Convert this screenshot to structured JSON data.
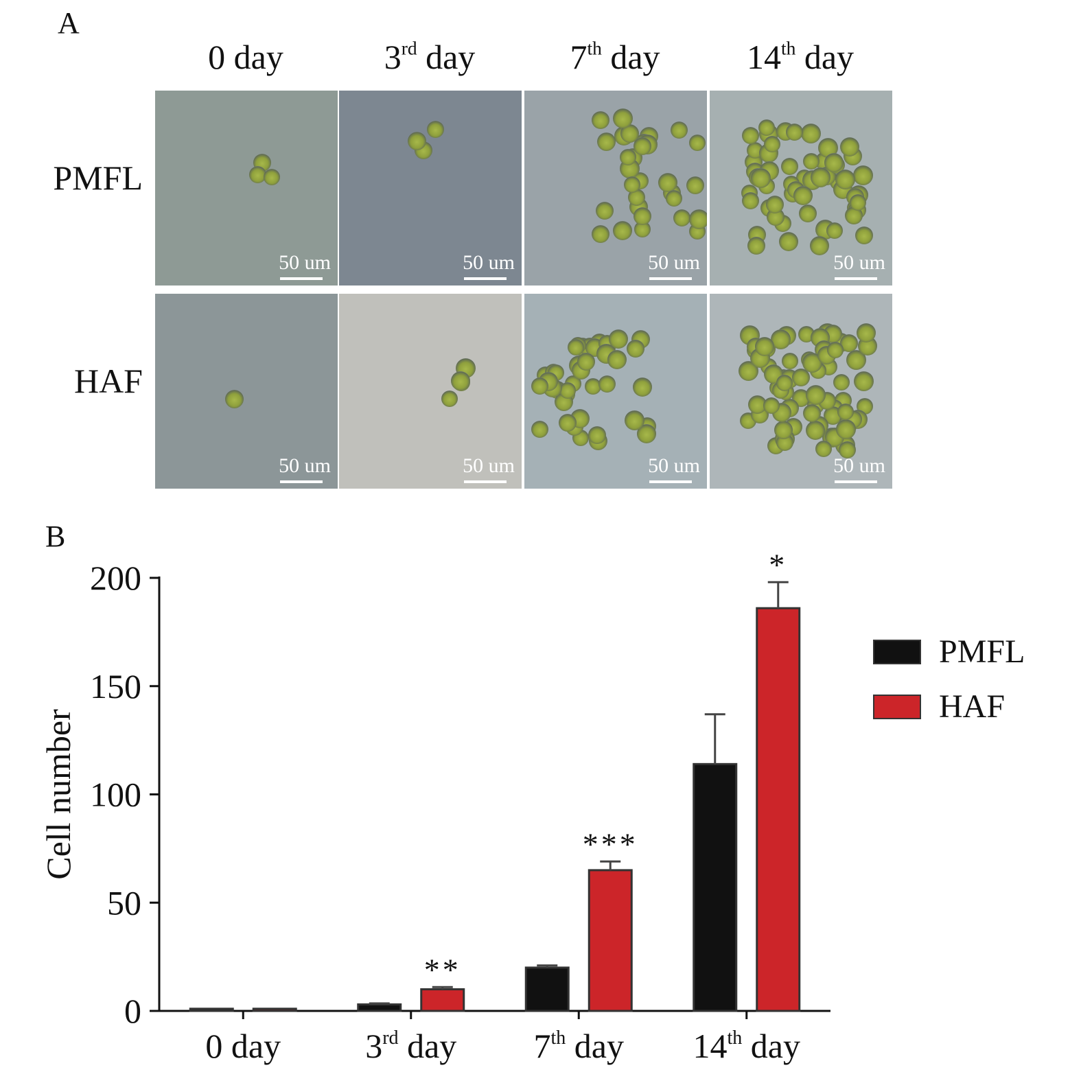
{
  "panel_a": {
    "letter": "A",
    "columns": [
      {
        "base": "0",
        "sup": "",
        "rest": " day"
      },
      {
        "base": "3",
        "sup": "rd",
        "rest": " day"
      },
      {
        "base": "7",
        "sup": "th",
        "rest": " day"
      },
      {
        "base": "14",
        "sup": "th",
        "rest": " day"
      }
    ],
    "rows": [
      "PMFL",
      "HAF"
    ],
    "scale_bar_text": "50 um",
    "image_tints": [
      [
        "#8e9a95",
        "#7d8791",
        "#9aa3a8",
        "#a6b0b1"
      ],
      [
        "#8c9698",
        "#c0c0bb",
        "#a5b1b6",
        "#aeb6b9"
      ]
    ]
  },
  "panel_b": {
    "letter": "B"
  },
  "chart_data": {
    "type": "bar",
    "categories": [
      "0 day",
      "3rd day",
      "7th day",
      "14th day"
    ],
    "category_parts": [
      {
        "base": "0",
        "sup": "",
        "rest": " day"
      },
      {
        "base": "3",
        "sup": "rd",
        "rest": " day"
      },
      {
        "base": "7",
        "sup": "th",
        "rest": " day"
      },
      {
        "base": "14",
        "sup": "th",
        "rest": " day"
      }
    ],
    "series": [
      {
        "name": "PMFL",
        "color": "#111111",
        "values": [
          1,
          3,
          20,
          114
        ],
        "errors": [
          0,
          0.5,
          1,
          23
        ]
      },
      {
        "name": "HAF",
        "color": "#cc2529",
        "values": [
          1,
          10,
          65,
          186
        ],
        "errors": [
          0,
          1,
          4,
          12
        ]
      }
    ],
    "significance": [
      "",
      "**",
      "***",
      "*"
    ],
    "ylabel": "Cell number",
    "xlabel": "",
    "ylim": [
      0,
      200
    ],
    "yticks": [
      0,
      50,
      100,
      150,
      200
    ],
    "legend_position": "right"
  }
}
